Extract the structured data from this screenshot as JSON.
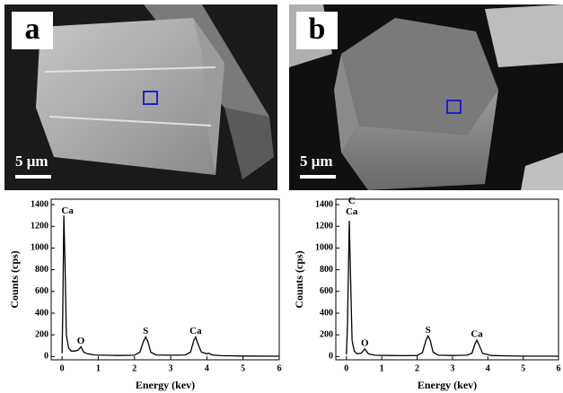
{
  "chart_data": [
    {
      "type": "line",
      "panel_label": "a",
      "scale_bar_label": "5 μm",
      "x_label": "Energy (kev)",
      "y_label": "Counts (cps)",
      "x": [
        0,
        0.02,
        0.05,
        0.08,
        0.12,
        0.18,
        0.25,
        0.35,
        0.45,
        0.52,
        0.6,
        0.7,
        0.9,
        1.2,
        1.6,
        2.0,
        2.15,
        2.25,
        2.31,
        2.37,
        2.45,
        2.6,
        3.0,
        3.4,
        3.55,
        3.64,
        3.69,
        3.75,
        3.85,
        4.0,
        4.05,
        4.15,
        4.4,
        5,
        6
      ],
      "series": [
        {
          "color": "#000000",
          "values": [
            30,
            400,
            1300,
            900,
            200,
            80,
            50,
            50,
            60,
            90,
            40,
            25,
            15,
            12,
            10,
            12,
            40,
            140,
            180,
            140,
            40,
            15,
            12,
            15,
            40,
            150,
            180,
            120,
            40,
            25,
            30,
            15,
            8,
            5,
            3
          ]
        }
      ],
      "annotations": [
        {
          "text": "Ca",
          "x": 0.15,
          "y": 1340
        },
        {
          "text": "O",
          "x": 0.52,
          "y": 140
        },
        {
          "text": "S",
          "x": 2.31,
          "y": 230
        },
        {
          "text": "Ca",
          "x": 3.69,
          "y": 230
        }
      ],
      "xlim": [
        -0.3,
        6
      ],
      "ylim": [
        -30,
        1450
      ],
      "xticks": [
        0,
        1,
        2,
        3,
        4,
        5,
        6
      ],
      "yticks": [
        0,
        200,
        400,
        600,
        800,
        1000,
        1200,
        1400
      ]
    },
    {
      "type": "line",
      "panel_label": "b",
      "scale_bar_label": "5 μm",
      "x_label": "Energy (kev)",
      "y_label": "Counts (cps)",
      "x": [
        0,
        0.03,
        0.08,
        0.12,
        0.16,
        0.22,
        0.3,
        0.42,
        0.52,
        0.62,
        0.8,
        1.2,
        1.6,
        2.0,
        2.15,
        2.25,
        2.31,
        2.37,
        2.45,
        2.6,
        3.0,
        3.4,
        3.55,
        3.64,
        3.69,
        3.75,
        3.85,
        4.1,
        4.5,
        5,
        6
      ],
      "series": [
        {
          "color": "#000000",
          "values": [
            20,
            300,
            1250,
            700,
            150,
            50,
            25,
            30,
            70,
            25,
            12,
            10,
            8,
            10,
            35,
            150,
            190,
            150,
            40,
            12,
            10,
            12,
            30,
            120,
            150,
            110,
            30,
            10,
            6,
            4,
            3
          ]
        }
      ],
      "annotations": [
        {
          "text": "C",
          "x": 0.15,
          "y": 1430
        },
        {
          "text": "Ca",
          "x": 0.15,
          "y": 1330
        },
        {
          "text": "O",
          "x": 0.52,
          "y": 120
        },
        {
          "text": "S",
          "x": 2.31,
          "y": 240
        },
        {
          "text": "Ca",
          "x": 3.69,
          "y": 200
        }
      ],
      "xlim": [
        -0.3,
        6
      ],
      "ylim": [
        -30,
        1450
      ],
      "xticks": [
        0,
        1,
        2,
        3,
        4,
        5,
        6
      ],
      "yticks": [
        0,
        200,
        400,
        600,
        800,
        1000,
        1200,
        1400
      ]
    }
  ]
}
